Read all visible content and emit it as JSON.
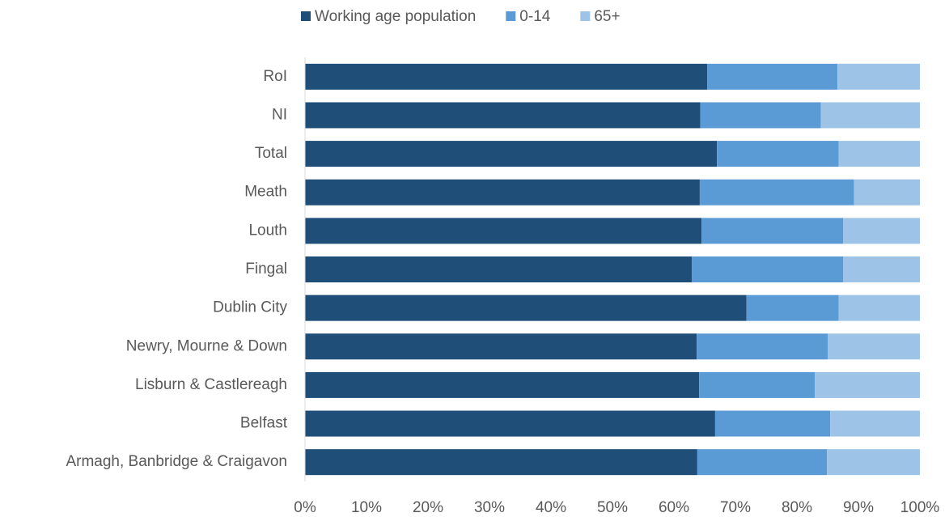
{
  "chart_data": {
    "type": "stacked_barh",
    "categories": [
      "RoI",
      "NI",
      "Total",
      "Meath",
      "Louth",
      "Fingal",
      "Dublin City",
      "Newry, Mourne & Down",
      "Lisburn & Castlereagh",
      "Belfast",
      "Armagh, Banbridge & Craigavon"
    ],
    "series": [
      {
        "name": "Working age population",
        "color": "#1f4e79",
        "values": [
          65.4,
          64.3,
          67.0,
          64.2,
          64.5,
          62.9,
          71.8,
          63.7,
          64.1,
          66.7,
          63.8
        ]
      },
      {
        "name": "0-14",
        "color": "#5b9bd5",
        "values": [
          21.2,
          19.6,
          19.8,
          25.1,
          23.0,
          24.6,
          15.0,
          21.3,
          18.8,
          18.7,
          21.1
        ]
      },
      {
        "name": "65+",
        "color": "#9dc3e6",
        "values": [
          13.4,
          16.1,
          13.2,
          10.7,
          12.5,
          12.5,
          13.2,
          15.0,
          17.1,
          14.6,
          15.1
        ]
      }
    ],
    "xlim": [
      0,
      100
    ],
    "xticks": [
      {
        "value": 0,
        "label": "0%"
      },
      {
        "value": 10,
        "label": "10%"
      },
      {
        "value": 20,
        "label": "20%"
      },
      {
        "value": 30,
        "label": "30%"
      },
      {
        "value": 40,
        "label": "40%"
      },
      {
        "value": 50,
        "label": "50%"
      },
      {
        "value": 60,
        "label": "60%"
      },
      {
        "value": 70,
        "label": "70%"
      },
      {
        "value": 80,
        "label": "80%"
      },
      {
        "value": 90,
        "label": "90%"
      },
      {
        "value": 100,
        "label": "100%"
      }
    ],
    "legend": "top"
  }
}
